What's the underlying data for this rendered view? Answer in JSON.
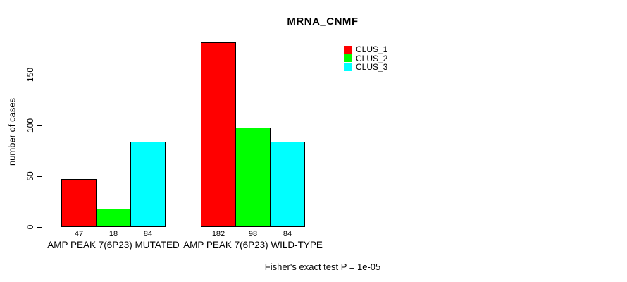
{
  "chart_data": {
    "type": "bar",
    "title": "MRNA_CNMF",
    "ylabel": "number of cases",
    "xlabel": "",
    "categories": [
      "AMP PEAK  7(6P23) MUTATED",
      "AMP PEAK  7(6P23) WILD-TYPE"
    ],
    "series": [
      {
        "name": "CLUS_1",
        "color": "#ff0000",
        "values": [
          47,
          182
        ]
      },
      {
        "name": "CLUS_2",
        "color": "#00ff00",
        "values": [
          18,
          98
        ]
      },
      {
        "name": "CLUS_3",
        "color": "#00ffff",
        "values": [
          84,
          84
        ]
      }
    ],
    "bar_value_labels": [
      [
        47,
        18,
        84
      ],
      [
        182,
        98,
        84
      ]
    ],
    "yticks": [
      0,
      50,
      100,
      150
    ],
    "ylim": [
      0,
      185
    ],
    "grid": false,
    "legend_position": "top-right",
    "bar_border_color": "#000000"
  },
  "footer": {
    "text": "Fisher's exact test P = 1e-05"
  }
}
